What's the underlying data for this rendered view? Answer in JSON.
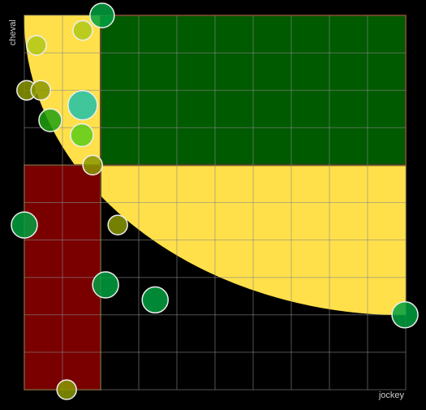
{
  "chart_data": {
    "type": "scatter",
    "xlabel": "jockey",
    "ylabel": "cheval",
    "xlim": [
      0,
      10
    ],
    "ylim": [
      0,
      10
    ],
    "xticks": [
      0,
      1,
      2,
      3,
      4,
      5,
      6,
      7,
      8,
      9,
      10
    ],
    "yticks": [
      0,
      1,
      2,
      3,
      4,
      5,
      6,
      7,
      8,
      9,
      10
    ],
    "grid": true,
    "regions": [
      {
        "x": [
          2,
          10
        ],
        "y": [
          6,
          10
        ],
        "color": "#005a00"
      },
      {
        "x": [
          0,
          2
        ],
        "y": [
          0,
          6
        ],
        "color": "#7a0000"
      }
    ],
    "curve": {
      "center": [
        10,
        10
      ],
      "rx": 10,
      "ry": 8,
      "color": "#ffe04a"
    },
    "x": [
      2.04,
      1.53,
      0.32,
      0.06,
      0.43,
      1.53,
      0.68,
      1.51,
      1.79,
      0,
      2.45,
      2.13,
      3.43,
      9.98,
      1.11
    ],
    "values": [
      10,
      9.6,
      9.2,
      8,
      8,
      7.6,
      7.2,
      6.8,
      6,
      4.4,
      4.4,
      2.8,
      2.4,
      2,
      0
    ],
    "sizes": [
      15,
      12,
      12,
      12,
      12,
      18,
      14,
      14,
      12,
      16,
      12,
      16,
      16,
      16,
      12
    ],
    "colors": [
      "#00a040",
      "#b0c818",
      "#b0c818",
      "#8a9600",
      "#8a9600",
      "#20c0a8",
      "#20a010",
      "#5ccc18",
      "#8a9600",
      "#00a040",
      "#8a9600",
      "#00a040",
      "#00a040",
      "#00a040",
      "#8a9600"
    ]
  }
}
